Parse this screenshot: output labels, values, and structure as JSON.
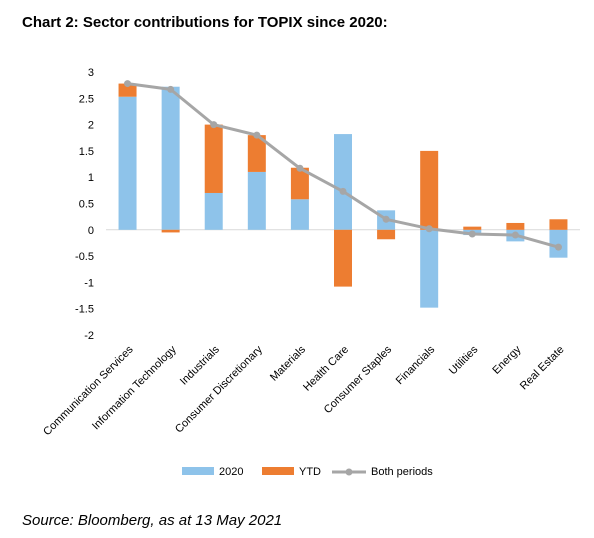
{
  "title": "Chart 2: Sector contributions for TOPIX since 2020:",
  "source": "Source: Bloomberg, as at 13 May 2021",
  "chart_data": {
    "type": "bar",
    "stacked": true,
    "categories": [
      "Communication Services",
      "Information Technology",
      "Industrials",
      "Consumer Discretionary",
      "Materials",
      "Health Care",
      "Consumer Staples",
      "Financials",
      "Utilities",
      "Energy",
      "Real Estate"
    ],
    "series": [
      {
        "name": "2020",
        "type": "bar",
        "color": "#8EC3EA",
        "values": [
          2.53,
          2.72,
          0.7,
          1.1,
          0.58,
          1.82,
          0.37,
          -1.48,
          -0.1,
          -0.22,
          -0.53
        ]
      },
      {
        "name": "YTD",
        "type": "bar",
        "color": "#ED7D31",
        "values": [
          0.25,
          -0.05,
          1.3,
          0.7,
          0.6,
          -1.08,
          -0.18,
          1.5,
          0.06,
          0.13,
          0.2
        ]
      },
      {
        "name": "Both periods",
        "type": "line",
        "color": "#A6A6A6",
        "values": [
          2.78,
          2.67,
          2.0,
          1.8,
          1.17,
          0.73,
          0.2,
          0.02,
          -0.08,
          -0.1,
          -0.33
        ]
      }
    ],
    "yticks": [
      "3",
      "2.5",
      "2",
      "1.5",
      "1",
      "0.5",
      "0",
      "-0.5",
      "-1",
      "-1.5",
      "-2"
    ],
    "ylim": [
      -2,
      3
    ],
    "grid": false,
    "legend_position": "bottom"
  }
}
